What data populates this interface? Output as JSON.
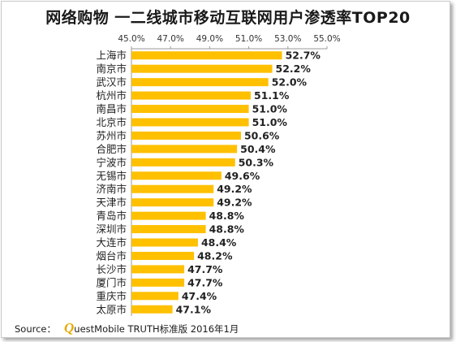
{
  "chart_data": {
    "type": "bar",
    "orientation": "horizontal",
    "title": "网络购物 一二线城市移动互联网用户渗透率TOP20",
    "categories": [
      "上海市",
      "南京市",
      "武汉市",
      "杭州市",
      "南昌市",
      "北京市",
      "苏州市",
      "合肥市",
      "宁波市",
      "无锡市",
      "济南市",
      "天津市",
      "青岛市",
      "深圳市",
      "大连市",
      "烟台市",
      "长沙市",
      "厦门市",
      "重庆市",
      "太原市"
    ],
    "values": [
      52.7,
      52.2,
      52.0,
      51.1,
      51.0,
      51.0,
      50.6,
      50.4,
      50.3,
      49.6,
      49.2,
      49.2,
      48.8,
      48.8,
      48.4,
      48.2,
      47.7,
      47.7,
      47.4,
      47.1
    ],
    "data_labels": [
      "52.7%",
      "52.2%",
      "52.0%",
      "51.1%",
      "51.0%",
      "51.0%",
      "50.6%",
      "50.4%",
      "50.3%",
      "49.6%",
      "49.2%",
      "49.2%",
      "48.8%",
      "48.8%",
      "48.4%",
      "48.2%",
      "47.7%",
      "47.7%",
      "47.4%",
      "47.1%"
    ],
    "x_ticks": [
      "45.0%",
      "47.0%",
      "49.0%",
      "51.0%",
      "53.0%",
      "55.0%"
    ],
    "xlim": [
      45,
      55
    ],
    "axis_position": "top",
    "grid": false,
    "bar_color": "#ffc000"
  },
  "footer": {
    "source_label": "Source：",
    "logo_letter": "Q",
    "source_text": "uestMobile TRUTH标准版 2016年1月"
  }
}
